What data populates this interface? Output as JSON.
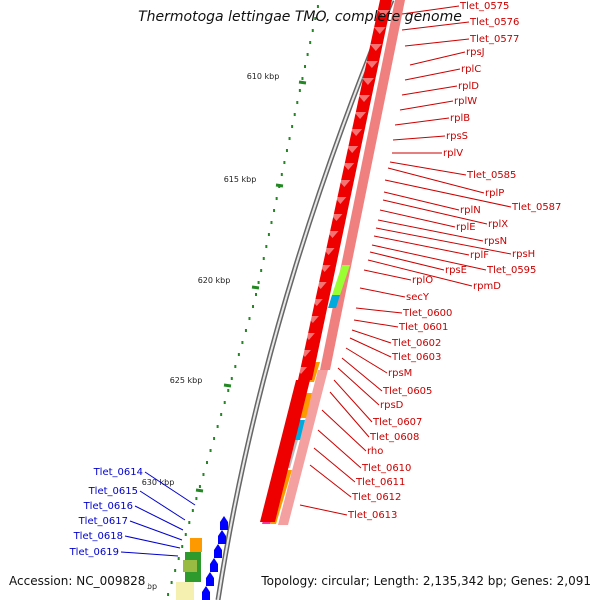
{
  "title": "Thermotoga lettingae TMO, complete genome",
  "accession": "Accession: NC_009828",
  "summary": "Topology: circular; Length: 2,135,342 bp; Genes: 2,091",
  "ticks": [
    "610 kbp",
    "615 kbp",
    "620 kbp",
    "625 kbp",
    "630 kbp"
  ],
  "partial_tick_label": "bp",
  "colors": {
    "cds_red": "#ee0000",
    "rrna_pink": "#f08080",
    "green": "#99ff33",
    "blue_cds": "#0000ff",
    "orange": "#ff9900",
    "cyan": "#00aadd",
    "magenta": "#ff3399",
    "tick_green": "#228822",
    "backbone": "#888888"
  },
  "genes_right": [
    "Tlet_0575",
    "Tlet_0576",
    "Tlet_0577",
    "rpsJ",
    "rplC",
    "rplD",
    "rplW",
    "rplB",
    "rpsS",
    "rplV",
    "Tlet_0585",
    "rplP",
    "Tlet_0587",
    "rplN",
    "rplX",
    "rplE",
    "rpsN",
    "rpsH",
    "rplF",
    "Tlet_0595",
    "rpsE",
    "rpmD",
    "rplO",
    "secY",
    "Tlet_0600",
    "Tlet_0601",
    "Tlet_0602",
    "Tlet_0603",
    "rpsM",
    "Tlet_0605",
    "rpsD",
    "Tlet_0607",
    "Tlet_0608",
    "rho",
    "Tlet_0610",
    "Tlet_0611",
    "Tlet_0612",
    "Tlet_0613"
  ],
  "genes_left": [
    "Tlet_0614",
    "Tlet_0615",
    "Tlet_0616",
    "Tlet_0617",
    "Tlet_0618",
    "Tlet_0619"
  ]
}
